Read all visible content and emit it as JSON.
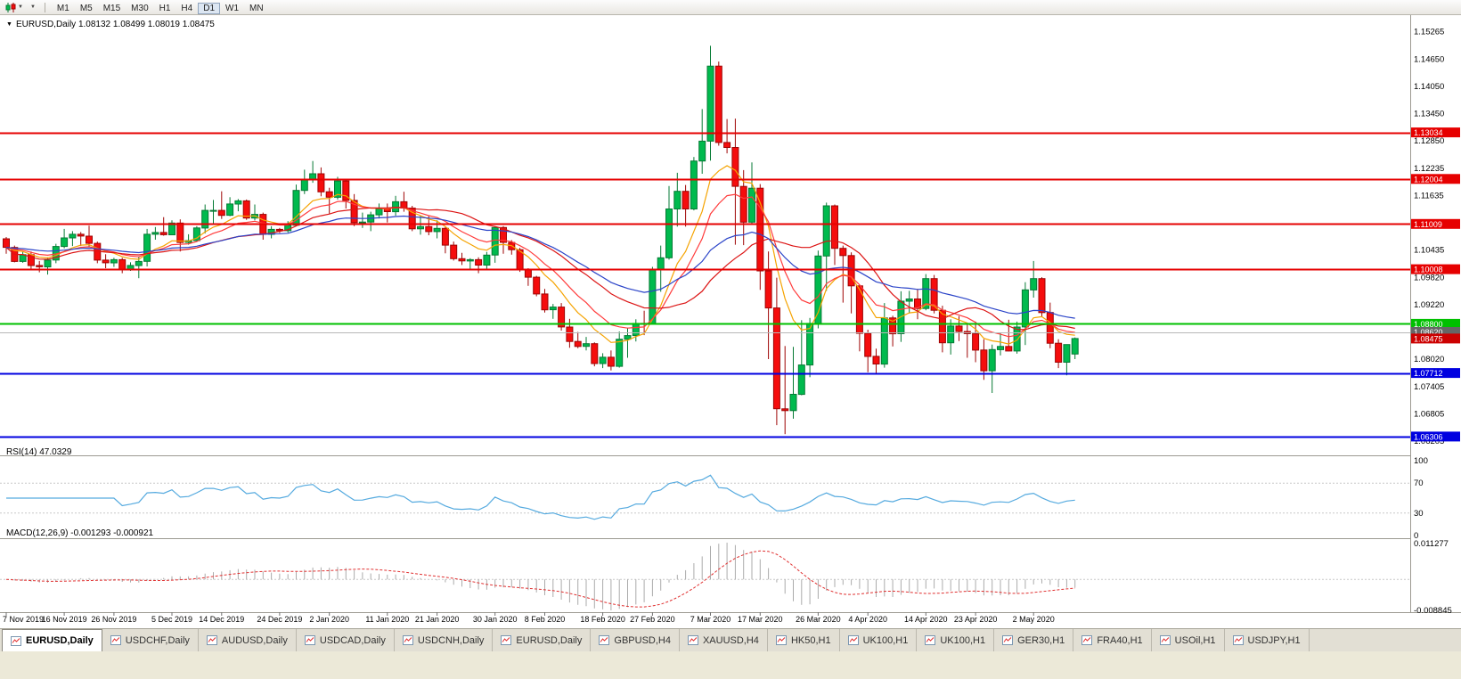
{
  "toolbar": {
    "timeframes": [
      "M1",
      "M5",
      "M15",
      "M30",
      "H1",
      "H4",
      "D1",
      "W1",
      "MN"
    ],
    "active_timeframe": "D1",
    "caret_icon": "▼"
  },
  "chart": {
    "ohlc_label": "EURUSD,Daily 1.08132 1.08499 1.08019 1.08475",
    "expand_marker": "▼"
  },
  "chart_data": {
    "type": "candlestick",
    "symbol": "EURUSD",
    "timeframe": "Daily",
    "ohlc_current": {
      "open": 1.08132,
      "high": 1.08499,
      "low": 1.08019,
      "close": 1.08475
    },
    "style": {
      "up_color": "#00BA4E",
      "up_edge": "#067A34",
      "down_color": "#F50D0D",
      "down_edge": "#9E0404"
    },
    "price_axis": {
      "min": 1.0595,
      "max": 1.1545,
      "ticks": [
        {
          "v": 1.15265,
          "label": "1.15265"
        },
        {
          "v": 1.1465,
          "label": "1.14650"
        },
        {
          "v": 1.1405,
          "label": "1.14050"
        },
        {
          "v": 1.1345,
          "label": "1.13450"
        },
        {
          "v": 1.1285,
          "label": "1.12850"
        },
        {
          "v": 1.12235,
          "label": "1.12235"
        },
        {
          "v": 1.11635,
          "label": "1.11635"
        },
        {
          "v": 1.10435,
          "label": "1.10435"
        },
        {
          "v": 1.0982,
          "label": "1.09820"
        },
        {
          "v": 1.0922,
          "label": "1.09220"
        },
        {
          "v": 1.0802,
          "label": "1.08020"
        },
        {
          "v": 1.07405,
          "label": "1.07405"
        },
        {
          "v": 1.06805,
          "label": "1.06805"
        },
        {
          "v": 1.06205,
          "label": "1.06205"
        }
      ]
    },
    "candles": [
      [
        1.1068,
        1.1072,
        1.1035,
        1.1049
      ],
      [
        1.1049,
        1.1053,
        1.1016,
        1.1018
      ],
      [
        1.1018,
        1.104,
        1.1015,
        1.1033
      ],
      [
        1.1033,
        1.104,
        1.1002,
        1.1009
      ],
      [
        1.1009,
        1.1019,
        1.0994,
        1.1006
      ],
      [
        1.1006,
        1.1027,
        1.0989,
        1.1021
      ],
      [
        1.1021,
        1.1057,
        1.1014,
        1.1051
      ],
      [
        1.1051,
        1.109,
        1.1047,
        1.107
      ],
      [
        1.107,
        1.1085,
        1.1052,
        1.1078
      ],
      [
        1.1078,
        1.1083,
        1.1052,
        1.1074
      ],
      [
        1.1074,
        1.1097,
        1.1051,
        1.1058
      ],
      [
        1.1058,
        1.1062,
        1.1014,
        1.1021
      ],
      [
        1.1021,
        1.1034,
        1.1003,
        1.1015
      ],
      [
        1.1015,
        1.1026,
        1.1006,
        1.1022
      ],
      [
        1.1022,
        1.1026,
        1.0992,
        1.1001
      ],
      [
        1.1001,
        1.1016,
        1.0997,
        1.1009
      ],
      [
        1.1009,
        1.1028,
        1.0981,
        1.1018
      ],
      [
        1.1018,
        1.109,
        1.1007,
        1.1078
      ],
      [
        1.1078,
        1.1094,
        1.1066,
        1.1082
      ],
      [
        1.1082,
        1.1116,
        1.1075,
        1.1077
      ],
      [
        1.1077,
        1.1109,
        1.1076,
        1.1103
      ],
      [
        1.1103,
        1.1111,
        1.104,
        1.106
      ],
      [
        1.106,
        1.1078,
        1.1055,
        1.1064
      ],
      [
        1.1064,
        1.1096,
        1.1063,
        1.1092
      ],
      [
        1.1092,
        1.1144,
        1.108,
        1.1131
      ],
      [
        1.1131,
        1.1154,
        1.1102,
        1.1131
      ],
      [
        1.1131,
        1.1173,
        1.1112,
        1.112
      ],
      [
        1.112,
        1.116,
        1.1118,
        1.1145
      ],
      [
        1.1145,
        1.1156,
        1.1129,
        1.1152
      ],
      [
        1.1152,
        1.1155,
        1.111,
        1.1114
      ],
      [
        1.1114,
        1.1144,
        1.1109,
        1.1122
      ],
      [
        1.1122,
        1.1126,
        1.1066,
        1.1078
      ],
      [
        1.1078,
        1.1096,
        1.1069,
        1.1089
      ],
      [
        1.1089,
        1.1092,
        1.1081,
        1.1086
      ],
      [
        1.1086,
        1.1107,
        1.1082,
        1.1098
      ],
      [
        1.1098,
        1.1188,
        1.1096,
        1.1175
      ],
      [
        1.1175,
        1.1221,
        1.1167,
        1.1199
      ],
      [
        1.1199,
        1.124,
        1.1192,
        1.1212
      ],
      [
        1.1212,
        1.1226,
        1.1162,
        1.1172
      ],
      [
        1.1172,
        1.1181,
        1.1124,
        1.116
      ],
      [
        1.116,
        1.1205,
        1.1155,
        1.1196
      ],
      [
        1.1196,
        1.1198,
        1.1135,
        1.1153
      ],
      [
        1.1153,
        1.1167,
        1.1096,
        1.1104
      ],
      [
        1.1104,
        1.1126,
        1.1092,
        1.1105
      ],
      [
        1.1105,
        1.1128,
        1.1085,
        1.1121
      ],
      [
        1.1121,
        1.1146,
        1.1113,
        1.1134
      ],
      [
        1.1134,
        1.1146,
        1.1104,
        1.1128
      ],
      [
        1.1128,
        1.1163,
        1.1119,
        1.115
      ],
      [
        1.115,
        1.1172,
        1.1128,
        1.1136
      ],
      [
        1.1136,
        1.1141,
        1.1085,
        1.109
      ],
      [
        1.109,
        1.1119,
        1.1077,
        1.1095
      ],
      [
        1.1095,
        1.1118,
        1.1076,
        1.1084
      ],
      [
        1.1084,
        1.1109,
        1.1069,
        1.1091
      ],
      [
        1.1091,
        1.1094,
        1.1036,
        1.1054
      ],
      [
        1.1054,
        1.1062,
        1.102,
        1.1024
      ],
      [
        1.1024,
        1.1037,
        1.101,
        1.1019
      ],
      [
        1.1019,
        1.1025,
        1.0998,
        1.1022
      ],
      [
        1.1022,
        1.1027,
        1.0992,
        1.101
      ],
      [
        1.101,
        1.1039,
        1.1001,
        1.1032
      ],
      [
        1.1032,
        1.1095,
        1.1015,
        1.1093
      ],
      [
        1.1093,
        1.1096,
        1.1035,
        1.106
      ],
      [
        1.106,
        1.1065,
        1.1033,
        1.1044
      ],
      [
        1.1044,
        1.1048,
        1.0995,
        1.1
      ],
      [
        1.1,
        1.1003,
        1.0964,
        1.0983
      ],
      [
        1.0983,
        1.0986,
        1.0941,
        1.0946
      ],
      [
        1.0946,
        1.0957,
        1.0905,
        1.0911
      ],
      [
        1.0911,
        1.0924,
        1.0891,
        1.0917
      ],
      [
        1.0917,
        1.0926,
        1.0865,
        1.0873
      ],
      [
        1.0873,
        1.0891,
        1.0827,
        1.0841
      ],
      [
        1.0841,
        1.0862,
        1.0826,
        1.083
      ],
      [
        1.083,
        1.0851,
        1.0821,
        1.0836
      ],
      [
        1.0836,
        1.0839,
        1.0786,
        1.0792
      ],
      [
        1.0792,
        1.0815,
        1.0782,
        1.0806
      ],
      [
        1.0806,
        1.0821,
        1.0777,
        1.0786
      ],
      [
        1.0786,
        1.0863,
        1.0783,
        1.0846
      ],
      [
        1.0846,
        1.087,
        1.0805,
        1.0854
      ],
      [
        1.0854,
        1.089,
        1.0841,
        1.0881
      ],
      [
        1.0881,
        1.0909,
        1.0855,
        1.088
      ],
      [
        1.088,
        1.1006,
        1.0878,
        1.1
      ],
      [
        1.1,
        1.1053,
        1.0951,
        1.1026
      ],
      [
        1.1026,
        1.1185,
        1.1022,
        1.1134
      ],
      [
        1.1134,
        1.1214,
        1.1095,
        1.1173
      ],
      [
        1.1173,
        1.1187,
        1.1095,
        1.1134
      ],
      [
        1.1134,
        1.1249,
        1.1131,
        1.124
      ],
      [
        1.124,
        1.1355,
        1.1212,
        1.1284
      ],
      [
        1.1284,
        1.1495,
        1.1241,
        1.145
      ],
      [
        1.145,
        1.146,
        1.1274,
        1.1281
      ],
      [
        1.1281,
        1.1333,
        1.1257,
        1.127
      ],
      [
        1.127,
        1.1334,
        1.1055,
        1.1184
      ],
      [
        1.1184,
        1.122,
        1.1054,
        1.1105
      ],
      [
        1.1105,
        1.1237,
        1.1101,
        1.118
      ],
      [
        1.118,
        1.1189,
        1.0955,
        1.0997
      ],
      [
        1.0997,
        1.104,
        1.0802,
        1.0915
      ],
      [
        1.0915,
        1.0982,
        1.0656,
        1.0692
      ],
      [
        1.0692,
        1.0831,
        1.0636,
        1.0688
      ],
      [
        1.0688,
        1.0829,
        1.067,
        1.0724
      ],
      [
        1.0724,
        1.0888,
        1.0722,
        1.0789
      ],
      [
        1.0789,
        1.0893,
        1.0762,
        1.0881
      ],
      [
        1.0881,
        1.1042,
        1.087,
        1.103
      ],
      [
        1.103,
        1.1148,
        1.0953,
        1.1141
      ],
      [
        1.1141,
        1.1144,
        1.101,
        1.1047
      ],
      [
        1.1047,
        1.1053,
        1.0927,
        1.1031
      ],
      [
        1.1031,
        1.1038,
        1.0903,
        1.0964
      ],
      [
        1.0964,
        1.0966,
        1.0819,
        1.0859
      ],
      [
        1.0859,
        1.0867,
        1.0773,
        1.0808
      ],
      [
        1.0808,
        1.0825,
        1.0768,
        1.0791
      ],
      [
        1.0791,
        1.0926,
        1.0783,
        1.0893
      ],
      [
        1.0893,
        1.0898,
        1.083,
        1.0858
      ],
      [
        1.0858,
        1.0952,
        1.084,
        1.093
      ],
      [
        1.093,
        1.0953,
        1.0903,
        1.0935
      ],
      [
        1.0935,
        1.0957,
        1.089,
        1.0914
      ],
      [
        1.0914,
        1.099,
        1.091,
        1.098
      ],
      [
        1.098,
        1.0988,
        1.0903,
        1.091
      ],
      [
        1.091,
        1.092,
        1.0817,
        1.0838
      ],
      [
        1.0838,
        1.089,
        1.0812,
        1.0875
      ],
      [
        1.0875,
        1.0897,
        1.0842,
        1.0863
      ],
      [
        1.0863,
        1.0879,
        1.0805,
        1.0858
      ],
      [
        1.0858,
        1.0885,
        1.0795,
        1.0822
      ],
      [
        1.0822,
        1.0846,
        1.0756,
        1.0776
      ],
      [
        1.0776,
        1.0834,
        1.0727,
        1.0823
      ],
      [
        1.0823,
        1.0861,
        1.081,
        1.083
      ],
      [
        1.083,
        1.0889,
        1.0819,
        1.082
      ],
      [
        1.082,
        1.0885,
        1.0814,
        1.0873
      ],
      [
        1.0873,
        1.0972,
        1.0833,
        1.0955
      ],
      [
        1.0955,
        1.1019,
        1.0938,
        1.098
      ],
      [
        1.098,
        1.0983,
        1.0896,
        1.0905
      ],
      [
        1.0905,
        1.0927,
        1.0826,
        1.0837
      ],
      [
        1.0837,
        1.0846,
        1.0782,
        1.0795
      ],
      [
        1.0795,
        1.0834,
        1.0766,
        1.0834
      ],
      [
        1.08132,
        1.08499,
        1.08019,
        1.08475
      ]
    ],
    "date_labels": [
      {
        "index": 0,
        "label": "7 Nov 2019"
      },
      {
        "index": 7,
        "label": "16 Nov 2019"
      },
      {
        "index": 13,
        "label": "26 Nov 2019"
      },
      {
        "index": 20,
        "label": "5 Dec 2019"
      },
      {
        "index": 26,
        "label": "14 Dec 2019"
      },
      {
        "index": 33,
        "label": "24 Dec 2019"
      },
      {
        "index": 39,
        "label": "2 Jan 2020"
      },
      {
        "index": 46,
        "label": "11 Jan 2020"
      },
      {
        "index": 52,
        "label": "21 Jan 2020"
      },
      {
        "index": 59,
        "label": "30 Jan 2020"
      },
      {
        "index": 65,
        "label": "8 Feb 2020"
      },
      {
        "index": 72,
        "label": "18 Feb 2020"
      },
      {
        "index": 78,
        "label": "27 Feb 2020"
      },
      {
        "index": 85,
        "label": "7 Mar 2020"
      },
      {
        "index": 91,
        "label": "17 Mar 2020"
      },
      {
        "index": 98,
        "label": "26 Mar 2020"
      },
      {
        "index": 104,
        "label": "4 Apr 2020"
      },
      {
        "index": 111,
        "label": "14 Apr 2020"
      },
      {
        "index": 117,
        "label": "23 Apr 2020"
      },
      {
        "index": 124,
        "label": "2 May 2020"
      }
    ],
    "moving_averages": [
      {
        "method": "ema",
        "period": 8,
        "color": "#F5A300"
      },
      {
        "method": "ema",
        "period": 13,
        "color": "#FF3B3B"
      },
      {
        "method": "sma",
        "period": 21,
        "color": "#DC1414"
      },
      {
        "method": "ema",
        "period": 34,
        "color": "#2B44C8"
      }
    ],
    "horizontal_lines": [
      {
        "price": 1.13034,
        "label": "1.13034",
        "color": "#E60000",
        "width": 2
      },
      {
        "price": 1.12004,
        "label": "1.12004",
        "color": "#E60000",
        "width": 2
      },
      {
        "price": 1.11009,
        "label": "1.11009",
        "color": "#E60000",
        "width": 2
      },
      {
        "price": 1.10008,
        "label": "1.10008",
        "color": "#E60000",
        "width": 2
      },
      {
        "price": 1.088,
        "label": "1.08800",
        "color": "#00C000",
        "width": 2
      },
      {
        "price": 1.0862,
        "label": "1.08620",
        "color": "#B8B8B8",
        "width": 1,
        "badge": "#666666"
      },
      {
        "price": 1.07712,
        "label": "1.07712",
        "color": "#0000E0",
        "width": 2
      },
      {
        "price": 1.06306,
        "label": "1.06306",
        "color": "#0000E0",
        "width": 2
      }
    ],
    "current_price": {
      "value": 1.08475,
      "label": "1.08475",
      "color": "#CC0000"
    },
    "rsi": {
      "label": "RSI(14) 47.0329",
      "period": 14,
      "current": 47.0329,
      "color": "#55AADF",
      "levels": [
        100,
        70,
        30,
        0
      ]
    },
    "macd": {
      "label": "MACD(12,26,9) -0.001293 -0.000921",
      "fast": 12,
      "slow": 26,
      "signal": 9,
      "macd_value": -0.001293,
      "signal_value": -0.000921,
      "scale_max": 0.011277,
      "scale_min": -0.008845,
      "scale_max_label": "0.011277",
      "scale_min_label": "-0.008845"
    }
  },
  "tabs": [
    "EURUSD,Daily",
    "USDCHF,Daily",
    "AUDUSD,Daily",
    "USDCAD,Daily",
    "USDCNH,Daily",
    "EURUSD,Daily",
    "GBPUSD,H4",
    "XAUUSD,H4",
    "HK50,H1",
    "UK100,H1",
    "UK100,H1",
    "GER30,H1",
    "FRA40,H1",
    "USOil,H1",
    "USDJPY,H1"
  ],
  "active_tab_index": 0
}
